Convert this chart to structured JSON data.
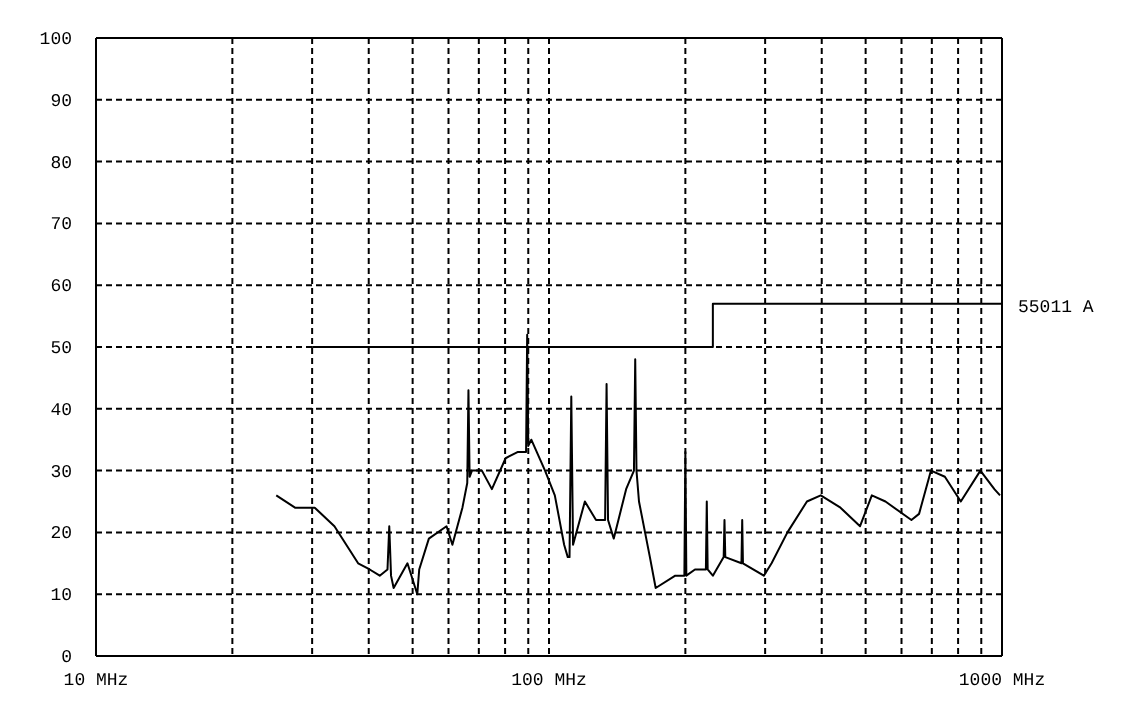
{
  "chart_data": {
    "type": "line",
    "log": "x",
    "grid": true,
    "marker": "none",
    "line_style": "solid",
    "xlim": [
      10,
      1000
    ],
    "xticks": [
      {
        "value": 10,
        "label": "10 MHz"
      },
      {
        "value": 20,
        "label": null
      },
      {
        "value": 30,
        "label": null
      },
      {
        "value": 40,
        "label": null
      },
      {
        "value": 50,
        "label": null
      },
      {
        "value": 60,
        "label": null
      },
      {
        "value": 70,
        "label": null
      },
      {
        "value": 80,
        "label": null
      },
      {
        "value": 90,
        "label": null
      },
      {
        "value": 100,
        "label": "100 MHz"
      },
      {
        "value": 200,
        "label": null
      },
      {
        "value": 300,
        "label": null
      },
      {
        "value": 400,
        "label": null
      },
      {
        "value": 500,
        "label": null
      },
      {
        "value": 600,
        "label": null
      },
      {
        "value": 700,
        "label": null
      },
      {
        "value": 800,
        "label": null
      },
      {
        "value": 900,
        "label": null
      },
      {
        "value": 1000,
        "label": "1000 MHz"
      }
    ],
    "ylim": [
      0,
      100
    ],
    "yticks": [
      0,
      10,
      20,
      30,
      40,
      50,
      60,
      70,
      80,
      90,
      100
    ],
    "series": [
      {
        "color": "#000000",
        "x": [
          25,
          27.5,
          30.4,
          33.6,
          37.9,
          40.2,
          42.3,
          44,
          44.4,
          44.8,
          45.4,
          48.7,
          51.2,
          51.7,
          54.3,
          59.4,
          61.2,
          64.4,
          66,
          66.4,
          66.8,
          67.6,
          71.1,
          74.8,
          80.2,
          85.2,
          89,
          89.5,
          90,
          91.4,
          98,
          103,
          108,
          110,
          111,
          112,
          113,
          120,
          127,
          133,
          134,
          135,
          139,
          148,
          154,
          155,
          156,
          158,
          167,
          172,
          190,
          199,
          200,
          201,
          210,
          222,
          223,
          224,
          230,
          243,
          244,
          245,
          266,
          267,
          268,
          298,
          310,
          336,
          371,
          398,
          440,
          486,
          516,
          553,
          631,
          656,
          697,
          748,
          811,
          896,
          962,
          990
        ],
        "values": [
          26,
          24,
          24,
          21,
          15,
          14,
          13,
          14,
          21,
          13,
          11,
          15,
          10,
          14,
          19,
          21,
          18,
          24,
          28,
          43,
          29,
          30,
          30,
          27,
          32,
          33,
          33,
          52,
          34,
          35,
          30,
          26,
          18,
          16,
          16,
          42,
          18,
          25,
          22,
          22,
          44,
          22,
          19,
          27,
          30,
          48,
          30,
          25,
          16,
          11,
          13,
          13,
          33,
          13,
          14,
          14,
          25,
          14,
          13,
          16,
          22,
          16,
          15,
          22,
          15,
          13,
          15,
          20,
          25,
          26,
          24,
          21,
          26,
          25,
          22,
          23,
          30,
          29,
          25,
          30,
          27,
          26
        ]
      },
      {
        "name": "55011 A",
        "color": "#000000",
        "x": [
          30,
          230,
          230,
          1000
        ],
        "values": [
          50,
          50,
          57,
          57
        ]
      }
    ]
  }
}
